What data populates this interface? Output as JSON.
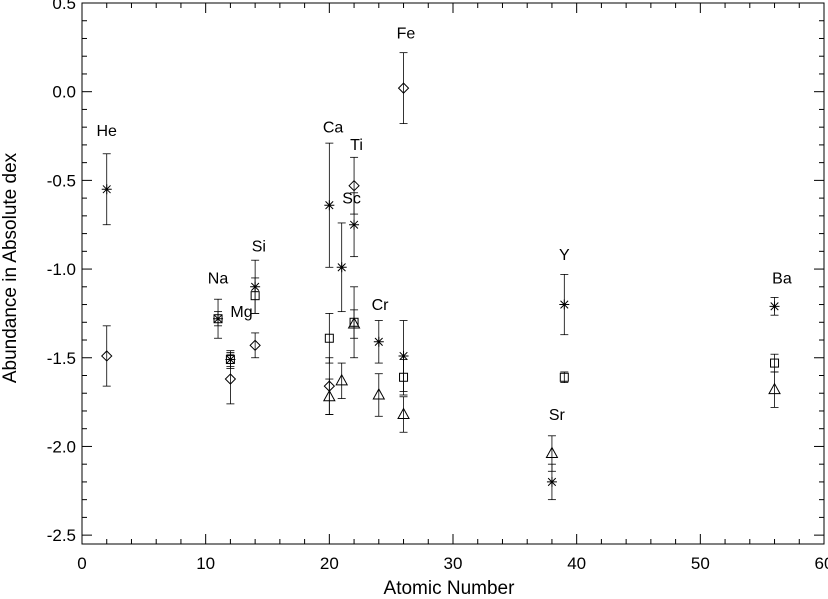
{
  "chart_data": {
    "type": "scatter",
    "xlabel": "Atomic Number",
    "ylabel": "Abundance in Absolute dex",
    "xlim": [
      0,
      60
    ],
    "ylim": [
      -2.55,
      0.5
    ],
    "xticks": [
      0,
      10,
      20,
      30,
      40,
      50,
      60
    ],
    "yticks": [
      0.5,
      0.0,
      -0.5,
      -1.0,
      -1.5,
      -2.0,
      -2.5
    ],
    "xtick_labels": [
      "0",
      "10",
      "20",
      "30",
      "40",
      "50",
      "60"
    ],
    "ytick_labels": [
      "0.5",
      "0.0",
      "-0.5",
      "-1.0",
      "-1.5",
      "-2.0",
      "-2.5"
    ],
    "grid": false,
    "series": [
      {
        "marker": "asterisk",
        "points": [
          {
            "x": 2,
            "y": -0.55,
            "err": 0.2
          },
          {
            "x": 11,
            "y": -1.28,
            "err": 0.11
          },
          {
            "x": 12,
            "y": -1.51,
            "err": 0.05
          },
          {
            "x": 14,
            "y": -1.1,
            "err": 0.15
          },
          {
            "x": 20,
            "y": -0.64,
            "err": 0.35
          },
          {
            "x": 21,
            "y": -0.99,
            "err": 0.25
          },
          {
            "x": 22,
            "y": -0.75,
            "err": 0.18
          },
          {
            "x": 24,
            "y": -1.41,
            "err": 0.12
          },
          {
            "x": 26,
            "y": -1.49,
            "err": 0.2
          },
          {
            "x": 38,
            "y": -2.2,
            "err": 0.1
          },
          {
            "x": 39,
            "y": -1.2,
            "err": 0.17
          },
          {
            "x": 56,
            "y": -1.21,
            "err": 0.05
          }
        ]
      },
      {
        "marker": "diamond",
        "points": [
          {
            "x": 2,
            "y": -1.49,
            "err": 0.17
          },
          {
            "x": 12,
            "y": -1.62,
            "err": 0.14
          },
          {
            "x": 14,
            "y": -1.43,
            "err": 0.07
          },
          {
            "x": 20,
            "y": -1.66,
            "err": 0.16
          },
          {
            "x": 22,
            "y": -0.53,
            "err": 0.16
          },
          {
            "x": 26,
            "y": 0.02,
            "err": 0.2
          }
        ]
      },
      {
        "marker": "square",
        "points": [
          {
            "x": 11,
            "y": -1.28,
            "err": 0.04
          },
          {
            "x": 12,
            "y": -1.51,
            "err": 0.04
          },
          {
            "x": 14,
            "y": -1.15,
            "err": 0.1
          },
          {
            "x": 20,
            "y": -1.39,
            "err": 0.14
          },
          {
            "x": 22,
            "y": -1.3,
            "err": 0.2
          },
          {
            "x": 26,
            "y": -1.61,
            "err": 0.1
          },
          {
            "x": 39,
            "y": -1.61,
            "err": 0.03
          },
          {
            "x": 56,
            "y": -1.53,
            "err": 0.05
          }
        ]
      },
      {
        "marker": "triangle",
        "points": [
          {
            "x": 20,
            "y": -1.72,
            "err": 0.1
          },
          {
            "x": 21,
            "y": -1.63,
            "err": 0.1
          },
          {
            "x": 22,
            "y": -1.31,
            "err": 0.08
          },
          {
            "x": 24,
            "y": -1.71,
            "err": 0.12
          },
          {
            "x": 26,
            "y": -1.82,
            "err": 0.1
          },
          {
            "x": 38,
            "y": -2.04,
            "err": 0.1
          },
          {
            "x": 56,
            "y": -1.68,
            "err": 0.1
          }
        ]
      }
    ],
    "annotations": [
      {
        "text": "He",
        "x": 2,
        "y": -0.25
      },
      {
        "text": "Na",
        "x": 11,
        "y": -1.08
      },
      {
        "text": "Mg",
        "x": 12.9,
        "y": -1.27
      },
      {
        "text": "Si",
        "x": 14.3,
        "y": -0.9
      },
      {
        "text": "Ca",
        "x": 20.3,
        "y": -0.23
      },
      {
        "text": "Sc",
        "x": 21.8,
        "y": -0.63
      },
      {
        "text": "Ti",
        "x": 22.2,
        "y": -0.33
      },
      {
        "text": "Cr",
        "x": 24.1,
        "y": -1.23
      },
      {
        "text": "Fe",
        "x": 26.2,
        "y": 0.3
      },
      {
        "text": "Y",
        "x": 39,
        "y": -0.95
      },
      {
        "text": "Sr",
        "x": 38.4,
        "y": -1.85
      },
      {
        "text": "Ba",
        "x": 56.6,
        "y": -1.08
      }
    ]
  }
}
